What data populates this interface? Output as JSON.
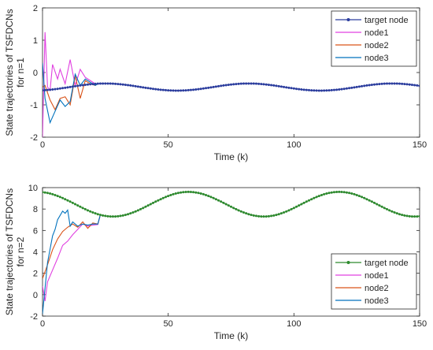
{
  "chart_data": [
    {
      "type": "line",
      "xlabel": "Time (k)",
      "ylabel_lines": [
        "State trajectories of TSFDCNs",
        "for n=1"
      ],
      "xlim": [
        0,
        150
      ],
      "ylim": [
        -2,
        2
      ],
      "xticks": [
        0,
        50,
        100,
        150
      ],
      "yticks": [
        -2,
        -1,
        0,
        1,
        2
      ],
      "grid": false,
      "legend_position": "top-right",
      "target": {
        "mean": -0.45,
        "amp": 0.11,
        "period": 57,
        "x_at_max": 25
      },
      "series": [
        {
          "name": "target node",
          "color": "#2b3d9e",
          "marker": "dot",
          "kind": "target"
        },
        {
          "name": "node1",
          "color": "#e040e0",
          "kind": "node",
          "transient": [
            [
              0,
              -2.0
            ],
            [
              1,
              1.25
            ],
            [
              2,
              -0.45
            ],
            [
              3,
              -0.55
            ],
            [
              4,
              0.25
            ],
            [
              6,
              -0.2
            ],
            [
              7,
              0.1
            ],
            [
              9,
              -0.35
            ],
            [
              11,
              0.4
            ],
            [
              13,
              -0.4
            ],
            [
              15,
              0.1
            ],
            [
              17,
              -0.15
            ],
            [
              19,
              -0.25
            ],
            [
              21,
              -0.35
            ]
          ]
        },
        {
          "name": "node2",
          "color": "#d95319",
          "kind": "node",
          "transient": [
            [
              0,
              -0.45
            ],
            [
              1,
              -0.4
            ],
            [
              3,
              -0.85
            ],
            [
              5,
              -1.15
            ],
            [
              7,
              -0.8
            ],
            [
              9,
              -0.75
            ],
            [
              11,
              -1.0
            ],
            [
              13,
              -0.1
            ],
            [
              15,
              -0.8
            ],
            [
              17,
              -0.25
            ],
            [
              19,
              -0.35
            ],
            [
              21,
              -0.4
            ]
          ]
        },
        {
          "name": "node3",
          "color": "#0072bd",
          "kind": "node",
          "transient": [
            [
              0,
              0.3
            ],
            [
              1,
              -0.8
            ],
            [
              3,
              -1.55
            ],
            [
              5,
              -1.2
            ],
            [
              7,
              -0.85
            ],
            [
              9,
              -1.05
            ],
            [
              11,
              -0.9
            ],
            [
              13,
              -0.05
            ],
            [
              15,
              -0.4
            ],
            [
              17,
              -0.2
            ],
            [
              19,
              -0.3
            ],
            [
              21,
              -0.4
            ]
          ]
        }
      ]
    },
    {
      "type": "line",
      "xlabel": "Time (k)",
      "ylabel_lines": [
        "State trajectories of TSFDCNs",
        "for n=2"
      ],
      "xlim": [
        0,
        150
      ],
      "ylim": [
        -2,
        10
      ],
      "xticks": [
        0,
        50,
        100,
        150
      ],
      "yticks": [
        -2,
        0,
        2,
        4,
        6,
        8,
        10
      ],
      "grid": false,
      "legend_position": "bottom-right",
      "target": {
        "mean": 8.45,
        "amp": 1.15,
        "period": 60,
        "x_at_max": 58
      },
      "series": [
        {
          "name": "target node",
          "color": "#2e8b2e",
          "marker": "dot",
          "kind": "target"
        },
        {
          "name": "node1",
          "color": "#e040e0",
          "kind": "node",
          "transient": [
            [
              0,
              0.8
            ],
            [
              1,
              -0.6
            ],
            [
              2,
              1.2
            ],
            [
              4,
              2.3
            ],
            [
              6,
              3.4
            ],
            [
              8,
              4.6
            ],
            [
              10,
              5.0
            ],
            [
              12,
              5.6
            ],
            [
              14,
              6.1
            ],
            [
              16,
              6.6
            ],
            [
              18,
              6.4
            ],
            [
              20,
              6.5
            ],
            [
              22,
              6.55
            ]
          ]
        },
        {
          "name": "node2",
          "color": "#d95319",
          "kind": "node",
          "transient": [
            [
              0,
              1.5
            ],
            [
              2,
              2.8
            ],
            [
              4,
              4.2
            ],
            [
              6,
              5.2
            ],
            [
              8,
              5.9
            ],
            [
              10,
              6.3
            ],
            [
              12,
              6.6
            ],
            [
              14,
              6.3
            ],
            [
              16,
              6.8
            ],
            [
              18,
              6.2
            ],
            [
              20,
              6.7
            ],
            [
              22,
              6.6
            ]
          ]
        },
        {
          "name": "node3",
          "color": "#0072bd",
          "kind": "node",
          "transient": [
            [
              0,
              -1.8
            ],
            [
              2,
              3.0
            ],
            [
              4,
              5.5
            ],
            [
              5,
              6.1
            ],
            [
              6,
              7.0
            ],
            [
              8,
              7.8
            ],
            [
              9,
              7.6
            ],
            [
              10,
              7.9
            ],
            [
              11,
              6.4
            ],
            [
              12,
              6.8
            ],
            [
              14,
              6.4
            ],
            [
              16,
              6.6
            ],
            [
              18,
              6.5
            ],
            [
              20,
              6.6
            ],
            [
              22,
              6.6
            ]
          ]
        }
      ]
    }
  ]
}
